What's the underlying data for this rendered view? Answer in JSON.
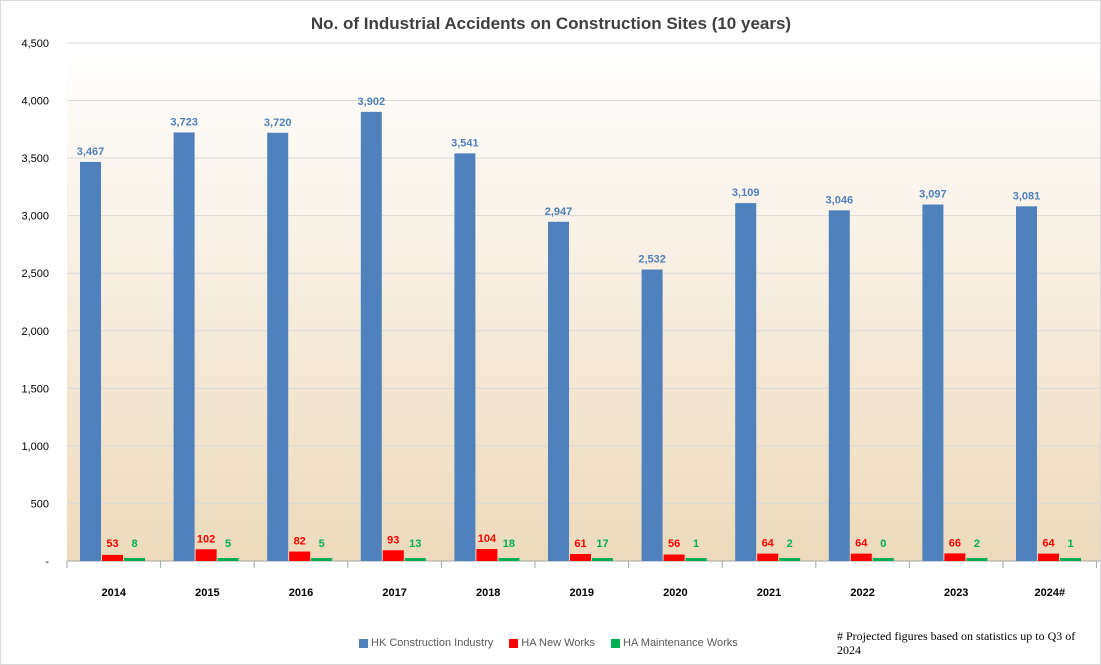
{
  "chart_data": {
    "type": "bar",
    "title": "No. of Industrial Accidents on Construction Sites (10 years)",
    "categories": [
      "2014",
      "2015",
      "2016",
      "2017",
      "2018",
      "2019",
      "2020",
      "2021",
      "2022",
      "2023",
      "2024#"
    ],
    "series": [
      {
        "name": "HK Construction Industry",
        "color": "#4f81bd",
        "label_color": "#4f81bd",
        "values": [
          3467,
          3723,
          3720,
          3902,
          3541,
          2947,
          2532,
          3109,
          3046,
          3097,
          3081
        ]
      },
      {
        "name": "HA New Works",
        "color": "#ff0000",
        "label_color": "#ff0000",
        "values": [
          53,
          102,
          82,
          93,
          104,
          61,
          56,
          64,
          64,
          66,
          64
        ]
      },
      {
        "name": "HA Maintenance Works",
        "color": "#00b050",
        "label_color": "#00b050",
        "values": [
          8,
          5,
          5,
          13,
          18,
          17,
          1,
          2,
          0,
          2,
          1
        ]
      }
    ],
    "ylim": [
      0,
      4500
    ],
    "yticks": [
      0,
      500,
      1000,
      1500,
      2000,
      2500,
      3000,
      3500,
      4000,
      4500
    ],
    "ytick_labels": [
      "-",
      "500",
      "1,000",
      "1,500",
      "2,000",
      "2,500",
      "3,000",
      "3,500",
      "4,000",
      "4,500"
    ],
    "grid": true,
    "legend_position": "bottom",
    "footnote": "# Projected figures based on statistics up to Q3 of 2024"
  }
}
